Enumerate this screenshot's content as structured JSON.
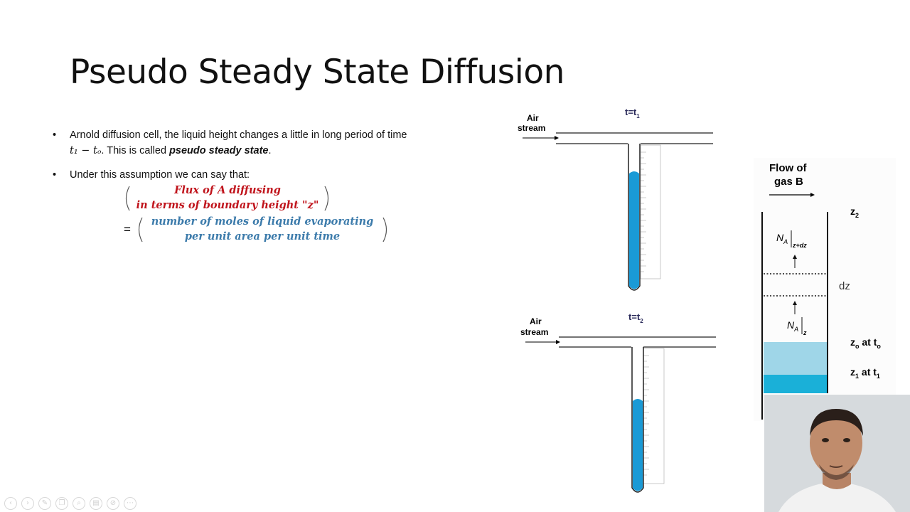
{
  "slide": {
    "title": "Pseudo Steady State Diffusion",
    "bullet1_line1": "Arnold diffusion cell, the liquid height changes a little in long period of time",
    "bullet1_math": "t₁ − tₒ",
    "bullet1_text": ". This is called ",
    "bullet1_emph": "pseudo steady state",
    "bullet1_end": ".",
    "bullet2": "Under this assumption we can say that:",
    "bullet_symbol": "•",
    "eq_top_line1": "Flux of A diffusing",
    "eq_top_line2": "in terms of boundary height \"z\"",
    "eq_equals": "=",
    "eq_bottom_line1": "number of moles of liquid evaporating",
    "eq_bottom_line2": "per unit area per unit time",
    "colors": {
      "flux": "#c0141c",
      "moles": "#3c7bab",
      "liquid": "#1a9ad6"
    }
  },
  "diagram_top": {
    "air_label_1": "Air",
    "air_label_2": "stream",
    "time_label": "t=t",
    "time_sub": "1"
  },
  "diagram_bottom": {
    "air_label_1": "Air",
    "air_label_2": "stream",
    "time_label": "t=t",
    "time_sub": "2"
  },
  "diagram_right": {
    "flow_label_1": "Flow of",
    "flow_label_2": "gas B",
    "z2_label": "z",
    "z2_sub": "2",
    "na_top": "N",
    "na_top_sub": "A",
    "na_top_eval": "z+dz",
    "dz_label": "dz",
    "na_bottom": "N",
    "na_bottom_sub": "A",
    "na_bottom_eval": "z",
    "zo_label": "z",
    "zo_sub": "o",
    "zo_suffix": " at t",
    "zo_suffix_sub": "o",
    "z1_label": "z",
    "z1_sub": "1",
    "z1_suffix": " at t",
    "z1_suffix_sub": "1",
    "colors": {
      "liquid_light": "#9fd6e8",
      "liquid_dark": "#1ab0d8"
    }
  },
  "toolbar": {
    "icons": [
      "prev-icon",
      "next-icon",
      "pen-icon",
      "copy-icon",
      "zoom-icon",
      "slides-icon",
      "hide-icon",
      "more-icon"
    ],
    "glyphs": [
      "‹",
      "›",
      "✎",
      "❐",
      "⌕",
      "▤",
      "⊘",
      "⋯"
    ]
  }
}
